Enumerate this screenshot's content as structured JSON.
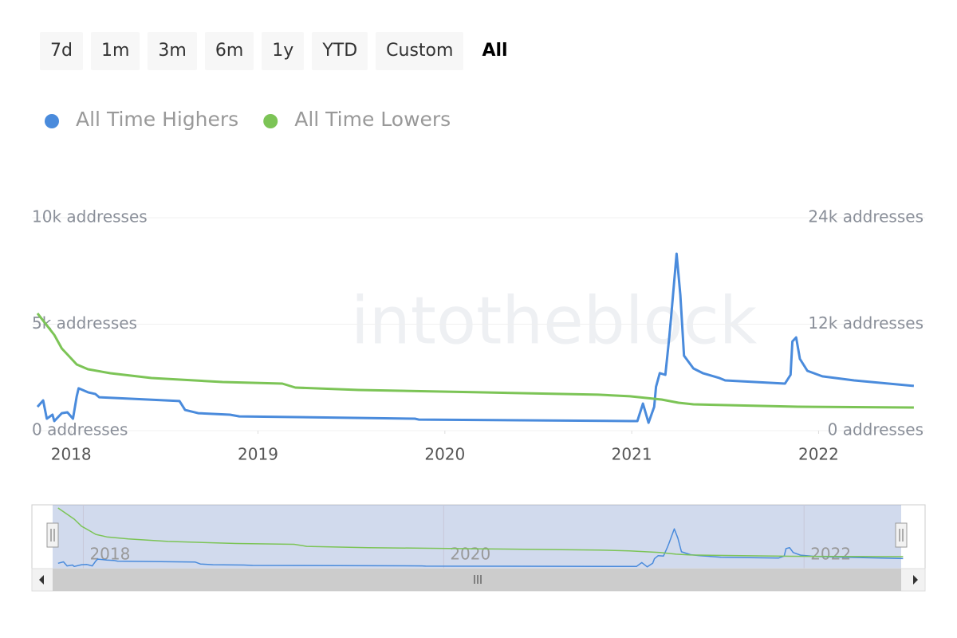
{
  "range_buttons": [
    "7d",
    "1m",
    "3m",
    "6m",
    "1y",
    "YTD",
    "Custom",
    "All"
  ],
  "selected_range": 7,
  "watermark": "intotheblock",
  "chart_data": {
    "type": "line",
    "xlim": [
      2017.79,
      2022.57
    ],
    "xticks": [
      2018,
      2019,
      2020,
      2021,
      2022
    ],
    "ylim": [
      0,
      10000
    ],
    "yticks": [
      {
        "value": 0,
        "label": "0 addresses"
      },
      {
        "value": 5000,
        "label": "5k addresses"
      },
      {
        "value": 10000,
        "label": "10k addresses"
      }
    ],
    "y2lim": [
      0,
      24000
    ],
    "y2ticks": [
      {
        "value": 0,
        "label": "0 addresses"
      },
      {
        "value": 12000,
        "label": "12k addresses"
      },
      {
        "value": 24000,
        "label": "24k addresses"
      }
    ],
    "grid": true,
    "series": [
      {
        "name": "All Time Highers",
        "color": "#4a8bdc",
        "x": [
          2017.82,
          2017.85,
          2017.87,
          2017.9,
          2017.91,
          2017.95,
          2017.98,
          2018.01,
          2018.03,
          2018.04,
          2018.09,
          2018.13,
          2018.15,
          2018.58,
          2018.61,
          2018.68,
          2018.85,
          2018.9,
          2019.84,
          2019.86,
          2021.0,
          2021.03,
          2021.06,
          2021.09,
          2021.12,
          2021.13,
          2021.15,
          2021.18,
          2021.2,
          2021.21,
          2021.24,
          2021.26,
          2021.28,
          2021.33,
          2021.38,
          2021.47,
          2021.5,
          2021.82,
          2021.85,
          2021.86,
          2021.88,
          2021.9,
          2021.94,
          2022.02,
          2022.19,
          2022.51
        ],
        "values": [
          1120,
          1420,
          560,
          750,
          450,
          820,
          860,
          560,
          1610,
          1990,
          1800,
          1720,
          1570,
          1390,
          970,
          820,
          750,
          670,
          560,
          520,
          450,
          450,
          1270,
          370,
          1120,
          2060,
          2700,
          2620,
          4310,
          5240,
          8310,
          6370,
          3520,
          2920,
          2700,
          2470,
          2360,
          2210,
          2620,
          4190,
          4380,
          3370,
          2810,
          2550,
          2360,
          2100
        ]
      },
      {
        "name": "All Time Lowers",
        "color": "#7cc456",
        "axis": "y2",
        "x": [
          2017.82,
          2017.87,
          2017.91,
          2017.95,
          2017.99,
          2018.03,
          2018.09,
          2018.21,
          2018.43,
          2018.81,
          2019.13,
          2019.2,
          2019.54,
          2020.18,
          2020.82,
          2020.99,
          2021.16,
          2021.25,
          2021.33,
          2021.89,
          2022.51
        ],
        "values": [
          13220,
          11870,
          10790,
          9260,
          8360,
          7460,
          6920,
          6470,
          5930,
          5480,
          5300,
          4850,
          4580,
          4320,
          4050,
          3870,
          3510,
          3150,
          2970,
          2700,
          2610
        ]
      }
    ]
  }
}
